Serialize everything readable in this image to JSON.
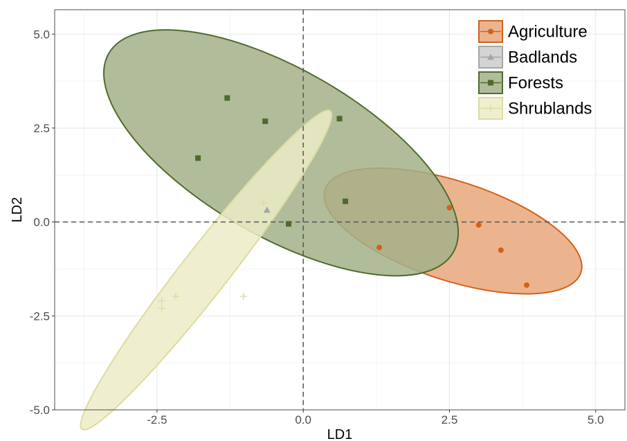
{
  "chart_data": {
    "type": "scatter",
    "xlabel": "LD1",
    "ylabel": "LD2",
    "xlim": [
      -4.25,
      5.5
    ],
    "ylim": [
      -5.0,
      5.65
    ],
    "x_ticks": [
      -2.5,
      0.0,
      2.5,
      5.0
    ],
    "x_tick_labels": [
      "-2.5",
      "0.0",
      "2.5",
      "5.0"
    ],
    "y_ticks": [
      -5.0,
      -2.5,
      0.0,
      2.5,
      5.0
    ],
    "y_tick_labels": [
      "-5.0",
      "-2.5",
      "0.0",
      "2.5",
      "5.0"
    ],
    "grid": true,
    "reference_lines": {
      "x": 0,
      "y": 0,
      "style": "dashed"
    },
    "legend_position": "top-right",
    "series": [
      {
        "name": "Agriculture",
        "color": "#D2611C",
        "fill": "#E8A77A",
        "marker": "circle",
        "points": [
          [
            1.3,
            -0.68
          ],
          [
            2.5,
            0.38
          ],
          [
            3.0,
            -0.08
          ],
          [
            3.38,
            -0.75
          ],
          [
            3.82,
            -1.68
          ]
        ],
        "ellipse": {
          "center": [
            2.56,
            -0.24
          ],
          "semi_axes": [
            2.3,
            1.32
          ],
          "angle_deg": -18
        }
      },
      {
        "name": "Badlands",
        "color": "#A6A6A6",
        "fill": "#CCCCCC",
        "marker": "triangle",
        "points": [
          [
            -0.62,
            0.32
          ]
        ],
        "ellipse": null
      },
      {
        "name": "Forests",
        "color": "#4E6B2C",
        "fill": "#A3B08A",
        "marker": "square",
        "points": [
          [
            -1.8,
            1.7
          ],
          [
            -1.3,
            3.3
          ],
          [
            -0.65,
            2.68
          ],
          [
            0.62,
            2.75
          ],
          [
            0.72,
            0.55
          ],
          [
            -0.25,
            -0.05
          ]
        ],
        "ellipse": {
          "center": [
            -0.38,
            1.84
          ],
          "semi_axes": [
            3.4,
            2.22
          ],
          "angle_deg": -30
        }
      },
      {
        "name": "Shrublands",
        "color": "#DCDCA0",
        "fill": "#ECECC8",
        "marker": "plus",
        "points": [
          [
            -2.42,
            -2.1
          ],
          [
            -2.42,
            -2.3
          ],
          [
            -2.18,
            -1.98
          ],
          [
            -1.02,
            -1.98
          ],
          [
            -0.68,
            0.5
          ]
        ],
        "ellipse": {
          "center": [
            -1.66,
            -1.28
          ],
          "semi_axes": [
            3.45,
            0.62
          ],
          "angle_deg": 52
        }
      }
    ]
  }
}
